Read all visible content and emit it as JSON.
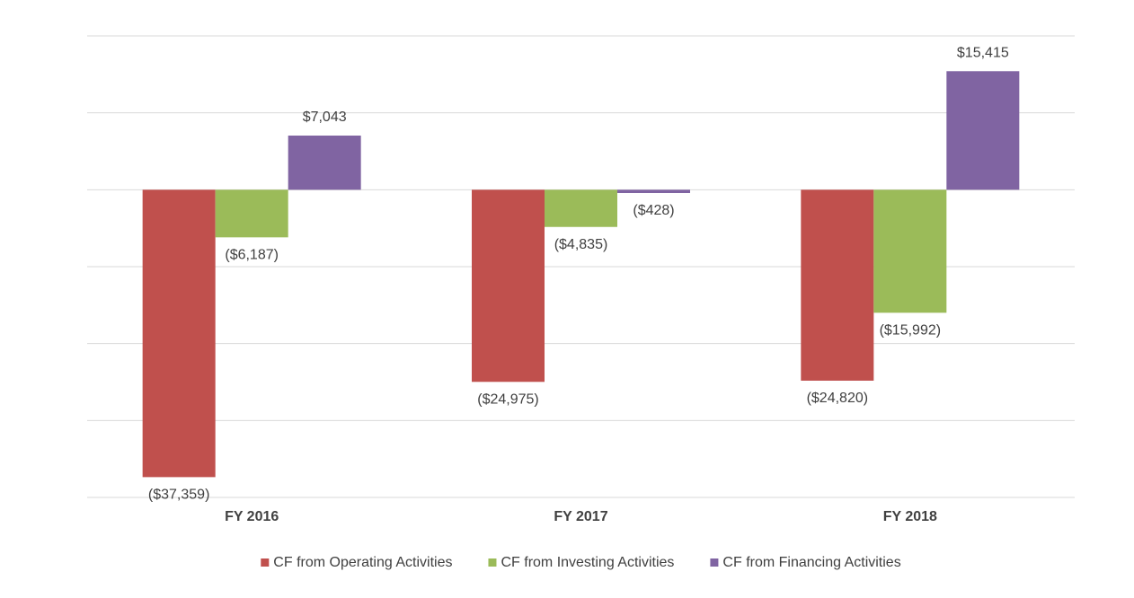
{
  "chart_data": {
    "type": "bar",
    "categories": [
      "FY 2016",
      "FY 2017",
      "FY 2018"
    ],
    "series": [
      {
        "name": "CF from Operating Activities",
        "color": "#c0504d",
        "values": [
          -37359,
          -24975,
          -24820
        ],
        "value_labels": [
          "($37,359)",
          "($24,975)",
          "($24,820)"
        ]
      },
      {
        "name": "CF from Investing Activities",
        "color": "#9bbb59",
        "values": [
          -6187,
          -4835,
          -15992
        ],
        "value_labels": [
          "($6,187)",
          "($4,835)",
          "($15,992)"
        ]
      },
      {
        "name": "CF from Financing Activities",
        "color": "#8064a2",
        "values": [
          7043,
          -428,
          15415
        ],
        "value_labels": [
          "$7,043",
          "($428)",
          "$15,415"
        ]
      }
    ],
    "ylim": [
      -40000,
      20000
    ],
    "yticks": [
      -40000,
      -30000,
      -20000,
      -10000,
      0,
      10000,
      20000
    ],
    "grid": true
  }
}
